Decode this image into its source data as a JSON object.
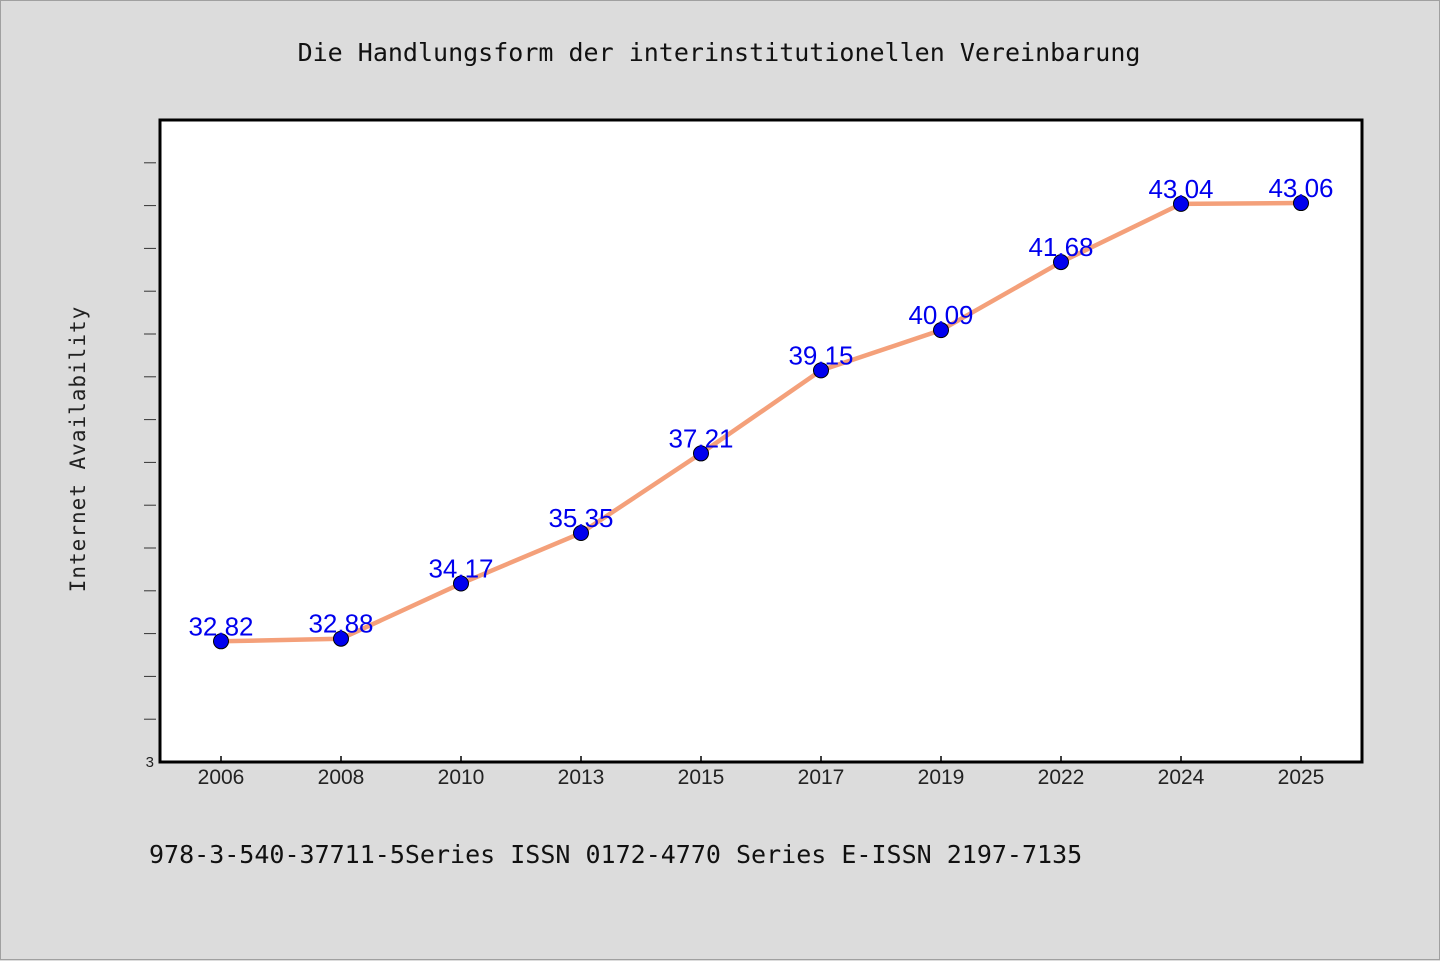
{
  "chart_data": {
    "type": "line",
    "title": "Die Handlungsform der interinstitutionellen Vereinbarung",
    "ylabel": "Internet Availability",
    "xlabel": "",
    "categories": [
      "2006",
      "2008",
      "2010",
      "2013",
      "2015",
      "2017",
      "2019",
      "2022",
      "2024",
      "2025"
    ],
    "series": [
      {
        "values": [
          32.82,
          32.88,
          34.17,
          35.35,
          37.21,
          39.15,
          40.09,
          41.68,
          43.04,
          43.06
        ],
        "data_labels": [
          "32.82",
          "32.88",
          "34.17",
          "35.35",
          "37.21",
          "39.15",
          "40.09",
          "41.68",
          "43.04",
          "43.06"
        ]
      }
    ],
    "y_tick_labels": [
      "3"
    ],
    "ylim": [
      30,
      45
    ],
    "grid": false,
    "colors": {
      "line": "#f4a07a",
      "marker": "#0000ee",
      "label": "#0000ee",
      "plot_bg": "#ffffff",
      "page_bg": "#dcdcdc"
    }
  },
  "footer": {
    "text": "978-3-540-37711-5Series ISSN 0172-4770 Series E-ISSN 2197-7135"
  }
}
